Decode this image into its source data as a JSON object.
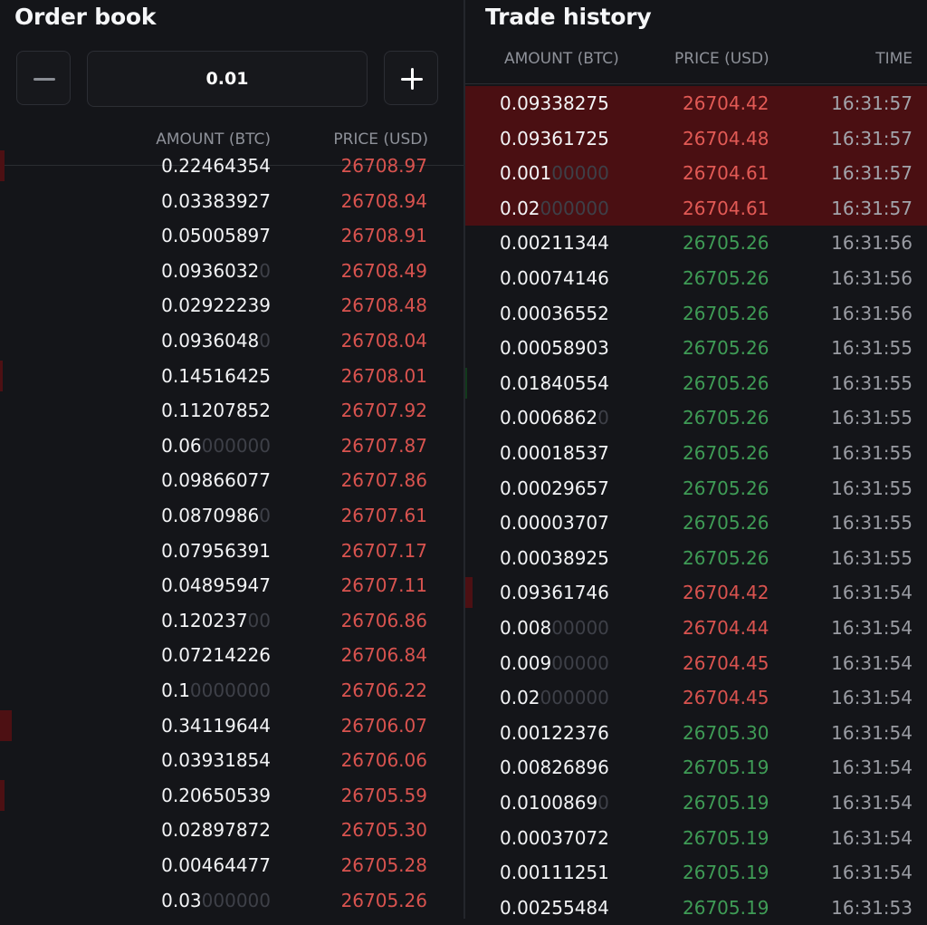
{
  "order_book": {
    "title": "Order book",
    "step_value": "0.01",
    "minus_icon": "minus-icon",
    "plus_icon": "plus-icon",
    "headers": {
      "amount": "AMOUNT (BTC)",
      "price": "PRICE (USD)"
    },
    "rows": [
      {
        "amount": "0.22464354",
        "trail": "",
        "price": "26708.97",
        "depth": 0.01
      },
      {
        "amount": "0.03383927",
        "trail": "",
        "price": "26708.94",
        "depth": 0
      },
      {
        "amount": "0.05005897",
        "trail": "",
        "price": "26708.91",
        "depth": 0
      },
      {
        "amount": "0.0936032",
        "trail": "0",
        "price": "26708.49",
        "depth": 0
      },
      {
        "amount": "0.02922239",
        "trail": "",
        "price": "26708.48",
        "depth": 0
      },
      {
        "amount": "0.0936048",
        "trail": "0",
        "price": "26708.04",
        "depth": 0
      },
      {
        "amount": "0.14516425",
        "trail": "",
        "price": "26708.01",
        "depth": 0.005
      },
      {
        "amount": "0.11207852",
        "trail": "",
        "price": "26707.92",
        "depth": 0
      },
      {
        "amount": "0.06",
        "trail": "000000",
        "price": "26707.87",
        "depth": 0
      },
      {
        "amount": "0.09866077",
        "trail": "",
        "price": "26707.86",
        "depth": 0
      },
      {
        "amount": "0.0870986",
        "trail": "0",
        "price": "26707.61",
        "depth": 0
      },
      {
        "amount": "0.07956391",
        "trail": "",
        "price": "26707.17",
        "depth": 0
      },
      {
        "amount": "0.04895947",
        "trail": "",
        "price": "26707.11",
        "depth": 0
      },
      {
        "amount": "0.120237",
        "trail": "00",
        "price": "26706.86",
        "depth": 0
      },
      {
        "amount": "0.07214226",
        "trail": "",
        "price": "26706.84",
        "depth": 0
      },
      {
        "amount": "0.1",
        "trail": "0000000",
        "price": "26706.22",
        "depth": 0
      },
      {
        "amount": "0.34119644",
        "trail": "",
        "price": "26706.07",
        "depth": 0.025
      },
      {
        "amount": "0.03931854",
        "trail": "",
        "price": "26706.06",
        "depth": 0
      },
      {
        "amount": "0.20650539",
        "trail": "",
        "price": "26705.59",
        "depth": 0.01
      },
      {
        "amount": "0.02897872",
        "trail": "",
        "price": "26705.30",
        "depth": 0
      },
      {
        "amount": "0.00464477",
        "trail": "",
        "price": "26705.28",
        "depth": 0
      },
      {
        "amount": "0.03",
        "trail": "000000",
        "price": "26705.26",
        "depth": 0
      }
    ]
  },
  "trade_history": {
    "title": "Trade history",
    "headers": {
      "amount": "AMOUNT (BTC)",
      "price": "PRICE (USD)",
      "time": "TIME"
    },
    "rows": [
      {
        "amount": "0.09338275",
        "trail": "",
        "price": "26704.42",
        "side": "sell",
        "time": "16:31:57",
        "highlight": true
      },
      {
        "amount": "0.09361725",
        "trail": "",
        "price": "26704.48",
        "side": "sell",
        "time": "16:31:57",
        "highlight": true
      },
      {
        "amount": "0.001",
        "trail": "00000",
        "price": "26704.61",
        "side": "sell",
        "time": "16:31:57",
        "highlight": true
      },
      {
        "amount": "0.02",
        "trail": "000000",
        "price": "26704.61",
        "side": "sell",
        "time": "16:31:57",
        "highlight": true
      },
      {
        "amount": "0.00211344",
        "trail": "",
        "price": "26705.26",
        "side": "buy",
        "time": "16:31:56"
      },
      {
        "amount": "0.00074146",
        "trail": "",
        "price": "26705.26",
        "side": "buy",
        "time": "16:31:56"
      },
      {
        "amount": "0.00036552",
        "trail": "",
        "price": "26705.26",
        "side": "buy",
        "time": "16:31:56"
      },
      {
        "amount": "0.00058903",
        "trail": "",
        "price": "26705.26",
        "side": "buy",
        "time": "16:31:55"
      },
      {
        "amount": "0.01840554",
        "trail": "",
        "price": "26705.26",
        "side": "buy",
        "time": "16:31:55",
        "depth": 0.004
      },
      {
        "amount": "0.0006862",
        "trail": "0",
        "price": "26705.26",
        "side": "buy",
        "time": "16:31:55"
      },
      {
        "amount": "0.00018537",
        "trail": "",
        "price": "26705.26",
        "side": "buy",
        "time": "16:31:55"
      },
      {
        "amount": "0.00029657",
        "trail": "",
        "price": "26705.26",
        "side": "buy",
        "time": "16:31:55"
      },
      {
        "amount": "0.00003707",
        "trail": "",
        "price": "26705.26",
        "side": "buy",
        "time": "16:31:55"
      },
      {
        "amount": "0.00038925",
        "trail": "",
        "price": "26705.26",
        "side": "buy",
        "time": "16:31:55"
      },
      {
        "amount": "0.09361746",
        "trail": "",
        "price": "26704.42",
        "side": "sell",
        "time": "16:31:54",
        "depth": 0.015
      },
      {
        "amount": "0.008",
        "trail": "00000",
        "price": "26704.44",
        "side": "sell",
        "time": "16:31:54"
      },
      {
        "amount": "0.009",
        "trail": "00000",
        "price": "26704.45",
        "side": "sell",
        "time": "16:31:54"
      },
      {
        "amount": "0.02",
        "trail": "000000",
        "price": "26704.45",
        "side": "sell",
        "time": "16:31:54"
      },
      {
        "amount": "0.00122376",
        "trail": "",
        "price": "26705.30",
        "side": "buy",
        "time": "16:31:54"
      },
      {
        "amount": "0.00826896",
        "trail": "",
        "price": "26705.19",
        "side": "buy",
        "time": "16:31:54"
      },
      {
        "amount": "0.0100869",
        "trail": "0",
        "price": "26705.19",
        "side": "buy",
        "time": "16:31:54"
      },
      {
        "amount": "0.00037072",
        "trail": "",
        "price": "26705.19",
        "side": "buy",
        "time": "16:31:54"
      },
      {
        "amount": "0.00111251",
        "trail": "",
        "price": "26705.19",
        "side": "buy",
        "time": "16:31:54"
      },
      {
        "amount": "0.00255484",
        "trail": "",
        "price": "26705.19",
        "side": "buy",
        "time": "16:31:53"
      }
    ]
  },
  "colors": {
    "background": "#141519",
    "sell": "#d9534f",
    "buy": "#3f9c56",
    "highlight_row": "#4a0f12",
    "muted_text": "#8e9199"
  }
}
